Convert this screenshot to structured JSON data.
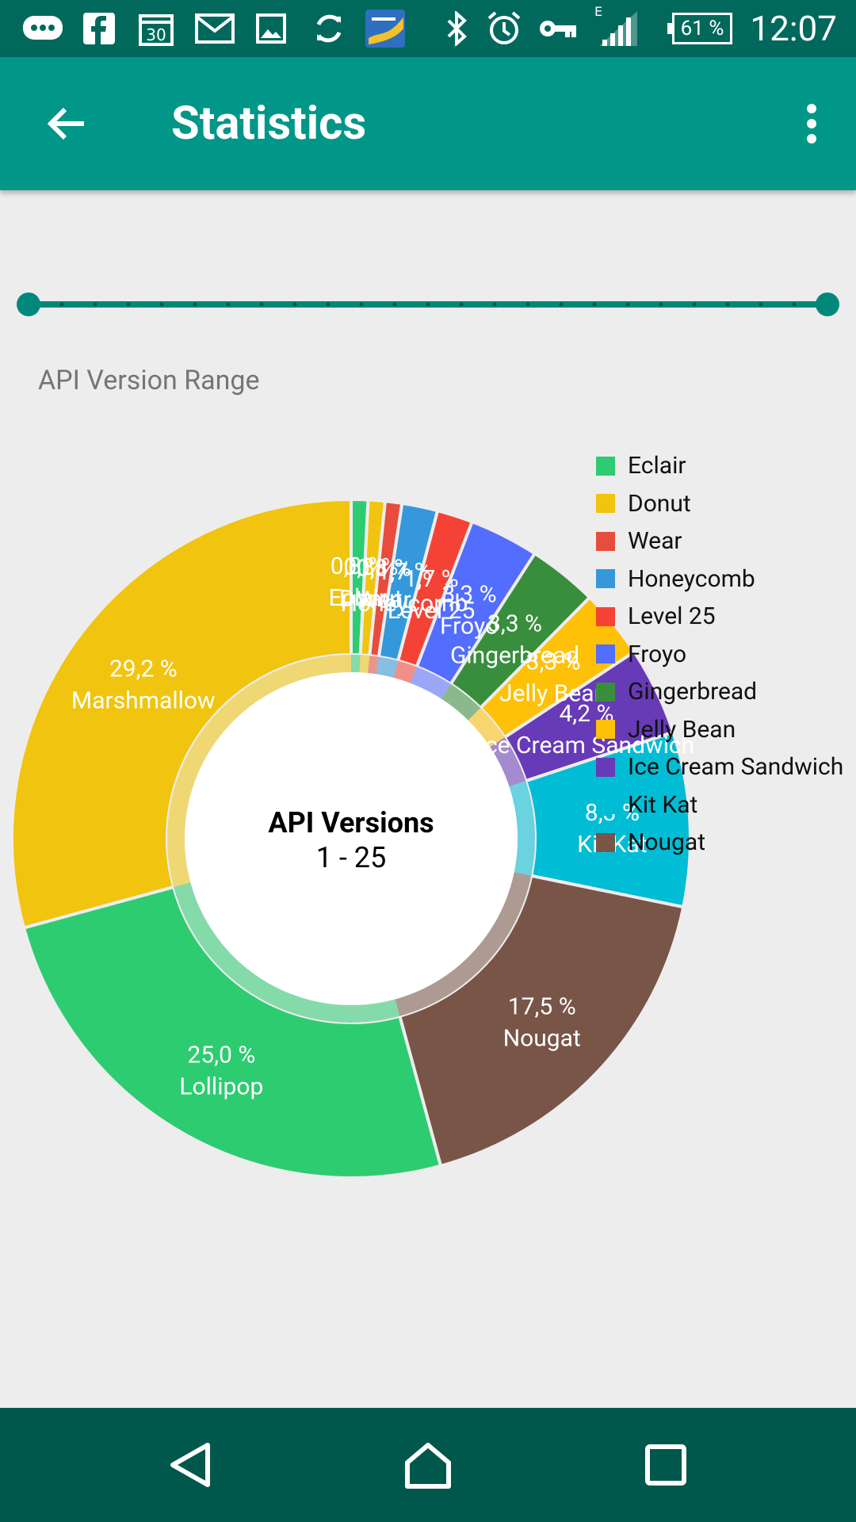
{
  "status_bar": {
    "time": "12:07",
    "battery_percent": "61 %",
    "network_type": "E",
    "icons": [
      "message-icon",
      "facebook-icon",
      "calendar-icon",
      "gmail-icon",
      "gallery-icon",
      "sync-icon",
      "game-icon",
      "bluetooth-icon",
      "alarm-icon",
      "vpn-key-icon",
      "signal-icon",
      "battery-icon"
    ],
    "calendar_day": "30"
  },
  "app_bar": {
    "title": "Statistics"
  },
  "range_slider": {
    "min_value": 1,
    "max_value": 25,
    "selected_min": 1,
    "selected_max": 25,
    "accent_color": "#00897b"
  },
  "range_label": "API Version Range",
  "center": {
    "title": "API Versions",
    "subtitle": "1 - 25"
  },
  "chart_data": {
    "type": "pie",
    "donut": true,
    "title": "",
    "slices": [
      {
        "name": "Eclair",
        "value": 0.8,
        "label": "0,8 %",
        "color": "#2ecc71"
      },
      {
        "name": "Donut",
        "value": 0.8,
        "label": "0,8 %",
        "color": "#f1c40f"
      },
      {
        "name": "Wear",
        "value": 0.8,
        "label": "0,8 %",
        "color": "#e74c3c"
      },
      {
        "name": "Honeycomb",
        "value": 1.7,
        "label": "1,7 %",
        "color": "#3498db"
      },
      {
        "name": "Level 25",
        "value": 1.7,
        "label": "1,7 %",
        "color": "#f44336"
      },
      {
        "name": "Froyo",
        "value": 3.3,
        "label": "3,3 %",
        "color": "#536dfe"
      },
      {
        "name": "Gingerbread",
        "value": 3.3,
        "label": "3,3 %",
        "color": "#388e3c"
      },
      {
        "name": "Jelly Bean",
        "value": 3.3,
        "label": "3,3 %",
        "color": "#ffc107"
      },
      {
        "name": "Ice Cream Sandwich",
        "value": 4.2,
        "label": "4,2 %",
        "color": "#673ab7"
      },
      {
        "name": "Kit Kat",
        "value": 8.3,
        "label": "8,3 %",
        "color": "#00bcd4"
      },
      {
        "name": "Nougat",
        "value": 17.5,
        "label": "17,5 %",
        "color": "#795548"
      },
      {
        "name": "Lollipop",
        "value": 25.0,
        "label": "25,0 %",
        "color": "#2ecc71"
      },
      {
        "name": "Marshmallow",
        "value": 29.2,
        "label": "29,2 %",
        "color": "#f1c40f"
      }
    ],
    "legend": [
      "Eclair",
      "Donut",
      "Wear",
      "Honeycomb",
      "Level 25",
      "Froyo",
      "Gingerbread",
      "Jelly Bean",
      "Ice Cream Sandwich",
      "Kit Kat",
      "Nougat"
    ],
    "legend_colors": [
      "#2ecc71",
      "#f1c40f",
      "#e74c3c",
      "#3498db",
      "#f44336",
      "#536dfe",
      "#388e3c",
      "#ffc107",
      "#673ab7",
      "#00bcd4",
      "#795548"
    ],
    "legend_position": "top-right"
  },
  "nav_bar": {
    "buttons": [
      "back-nav-icon",
      "home-nav-icon",
      "recents-nav-icon"
    ]
  }
}
